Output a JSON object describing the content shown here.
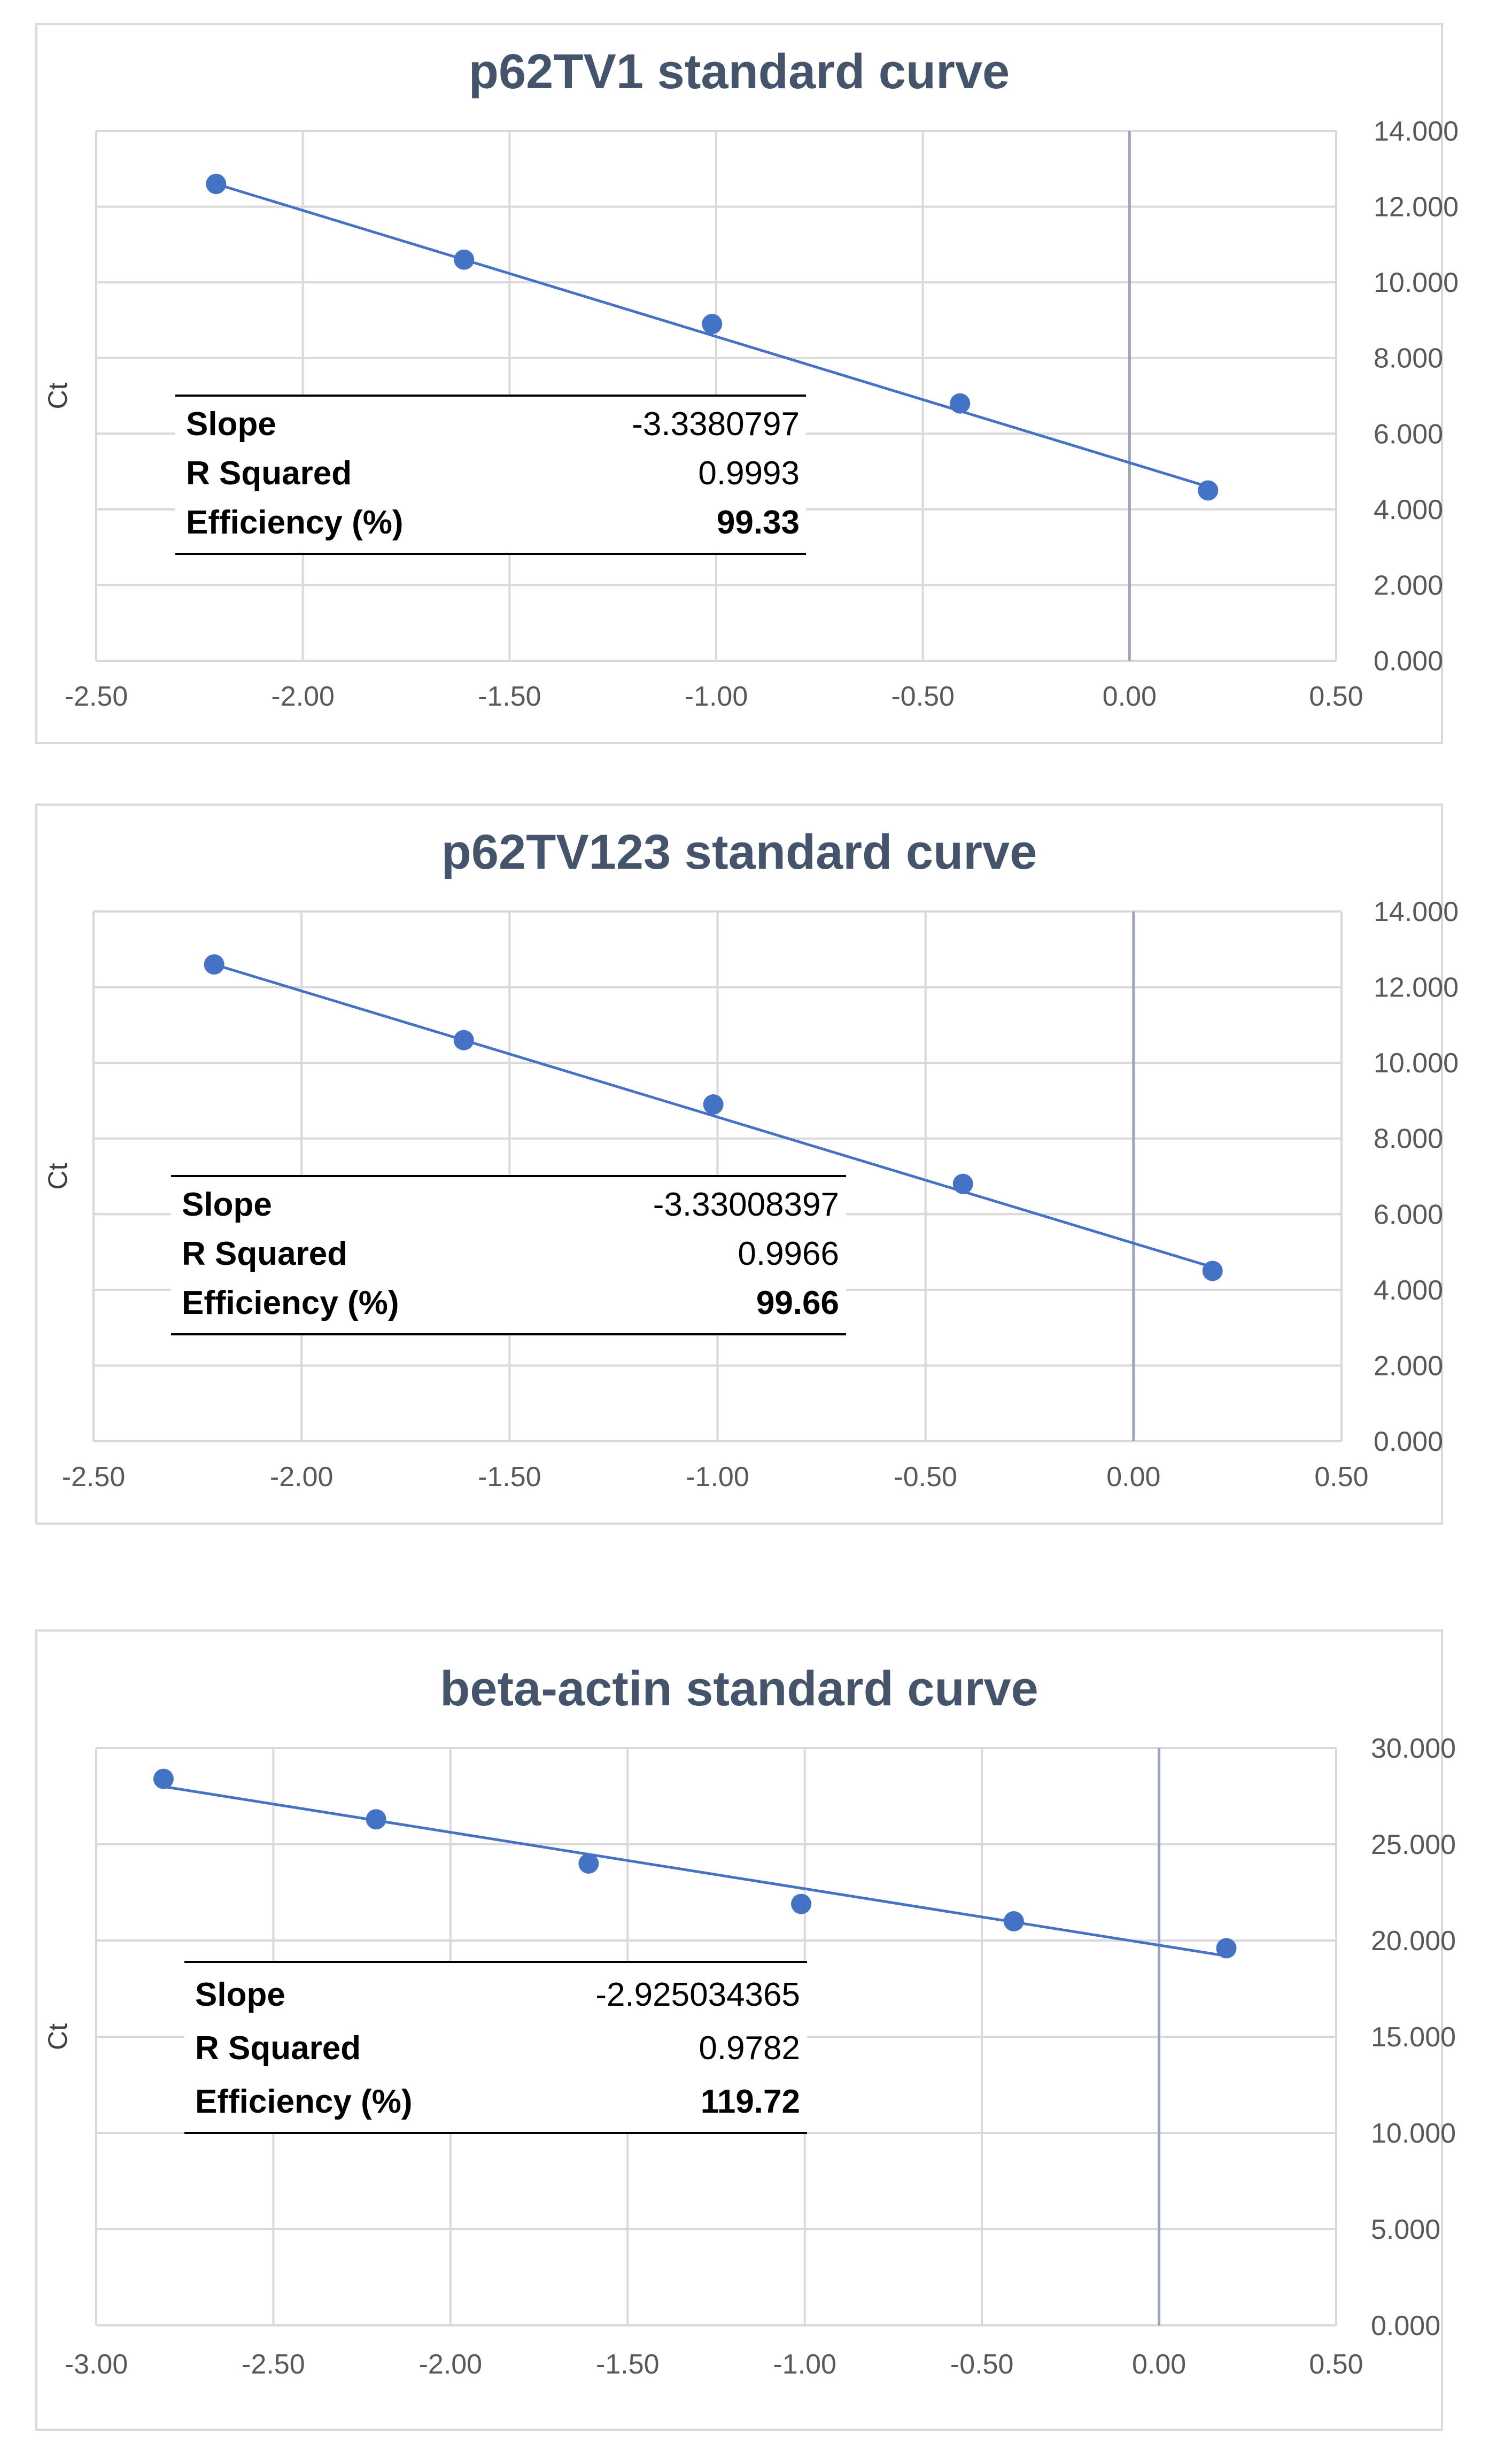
{
  "colors": {
    "series": "#4472c4",
    "title": "#44546a",
    "grid": "#d9d9d9",
    "border": "#d9d9d9",
    "tick_text": "#595959",
    "zero_line": "#9aa6b8"
  },
  "chart_data": [
    {
      "type": "scatter",
      "title": "p62TV1 standard curve",
      "xlabel": "",
      "ylabel": "Ct",
      "xlim": [
        -2.5,
        0.5
      ],
      "ylim": [
        0,
        14
      ],
      "x_ticks": [
        "-2.50",
        "-2.00",
        "-1.50",
        "-1.00",
        "-0.50",
        "0.00",
        "0.50"
      ],
      "y_ticks": [
        "0.000",
        "2.000",
        "4.000",
        "6.000",
        "8.000",
        "10.000",
        "12.000",
        "14.000"
      ],
      "x_tick_values": [
        -2.5,
        -2.0,
        -1.5,
        -1.0,
        -0.5,
        0.0,
        0.5
      ],
      "y_tick_values": [
        0,
        2,
        4,
        6,
        8,
        10,
        12,
        14
      ],
      "points": [
        {
          "x": -2.21,
          "y": 12.6
        },
        {
          "x": -1.61,
          "y": 10.6
        },
        {
          "x": -1.01,
          "y": 8.9
        },
        {
          "x": -0.41,
          "y": 6.8
        },
        {
          "x": 0.19,
          "y": 4.5
        }
      ],
      "trendline": {
        "x1": -2.21,
        "y1": 12.6,
        "x2": 0.19,
        "y2": 4.6
      },
      "stats": [
        {
          "label": "Slope",
          "value": "-3.3380797",
          "bold": false
        },
        {
          "label": "R Squared",
          "value": "0.9993",
          "bold": false
        },
        {
          "label": "Efficiency (%)",
          "value": "99.33",
          "bold": true
        }
      ]
    },
    {
      "type": "scatter",
      "title": "p62TV123 standard curve",
      "xlabel": "",
      "ylabel": "Ct",
      "xlim": [
        -2.5,
        0.5
      ],
      "ylim": [
        0,
        14
      ],
      "x_ticks": [
        "-2.50",
        "-2.00",
        "-1.50",
        "-1.00",
        "-0.50",
        "0.00",
        "0.50"
      ],
      "y_ticks": [
        "0.000",
        "2.000",
        "4.000",
        "6.000",
        "8.000",
        "10.000",
        "12.000",
        "14.000"
      ],
      "x_tick_values": [
        -2.5,
        -2.0,
        -1.5,
        -1.0,
        -0.5,
        0.0,
        0.5
      ],
      "y_tick_values": [
        0,
        2,
        4,
        6,
        8,
        10,
        12,
        14
      ],
      "points": [
        {
          "x": -2.21,
          "y": 12.6
        },
        {
          "x": -1.61,
          "y": 10.6
        },
        {
          "x": -1.01,
          "y": 8.9
        },
        {
          "x": -0.41,
          "y": 6.8
        },
        {
          "x": 0.19,
          "y": 4.5
        }
      ],
      "trendline": {
        "x1": -2.21,
        "y1": 12.6,
        "x2": 0.19,
        "y2": 4.6
      },
      "stats": [
        {
          "label": "Slope",
          "value": "-3.33008397",
          "bold": false
        },
        {
          "label": "R Squared",
          "value": "0.9966",
          "bold": false
        },
        {
          "label": "Efficiency (%)",
          "value": "99.66",
          "bold": true
        }
      ]
    },
    {
      "type": "scatter",
      "title": "beta-actin standard curve",
      "xlabel": "",
      "ylabel": "Ct",
      "xlim": [
        -3.0,
        0.5
      ],
      "ylim": [
        0,
        30
      ],
      "x_ticks": [
        "-3.00",
        "-2.50",
        "-2.00",
        "-1.50",
        "-1.00",
        "-0.50",
        "0.00",
        "0.50"
      ],
      "y_ticks": [
        "0.000",
        "5.000",
        "10.000",
        "15.000",
        "20.000",
        "25.000",
        "30.000"
      ],
      "x_tick_values": [
        -3.0,
        -2.5,
        -2.0,
        -1.5,
        -1.0,
        -0.5,
        0.0,
        0.5
      ],
      "y_tick_values": [
        0,
        5,
        10,
        15,
        20,
        25,
        30
      ],
      "points": [
        {
          "x": -2.81,
          "y": 28.4
        },
        {
          "x": -2.21,
          "y": 26.3
        },
        {
          "x": -1.61,
          "y": 24.0
        },
        {
          "x": -1.01,
          "y": 21.9
        },
        {
          "x": -0.41,
          "y": 21.0
        },
        {
          "x": 0.19,
          "y": 19.6
        }
      ],
      "trendline": {
        "x1": -2.81,
        "y1": 28.0,
        "x2": 0.19,
        "y2": 19.2
      },
      "stats": [
        {
          "label": "Slope",
          "value": "-2.925034365",
          "bold": false
        },
        {
          "label": "R Squared",
          "value": "0.9782",
          "bold": false
        },
        {
          "label": "Efficiency (%)",
          "value": "119.72",
          "bold": true
        }
      ]
    }
  ]
}
